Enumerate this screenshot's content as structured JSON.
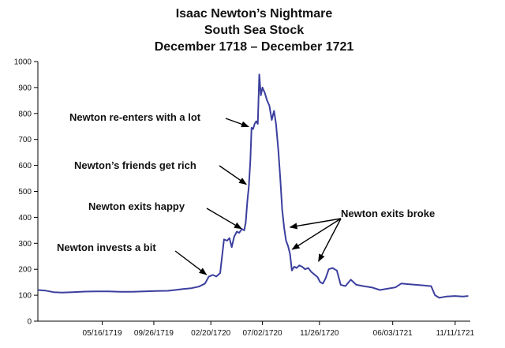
{
  "chart_data": {
    "type": "line",
    "title": [
      "Isaac Newton’s Nightmare",
      "South Sea Stock",
      "December 1718 – December 1721"
    ],
    "xlabel": "",
    "ylabel": "",
    "ylim": [
      0,
      1000
    ],
    "yticks": [
      0,
      100,
      200,
      300,
      400,
      500,
      600,
      700,
      800,
      900,
      1000
    ],
    "xrange": [
      "12/1718",
      "12/1721"
    ],
    "xticks": [
      {
        "label": "05/16/1719",
        "x": "1719-05-16"
      },
      {
        "label": "09/26/1719",
        "x": "1719-09-26"
      },
      {
        "label": "02/20/1720",
        "x": "1720-02-20"
      },
      {
        "label": "07/02/1720",
        "x": "1720-07-02"
      },
      {
        "label": "11/26/1720",
        "x": "1720-11-26"
      },
      {
        "label": "06/03/1721",
        "x": "1721-06-03"
      },
      {
        "label": "11/11/1721",
        "x": "1721-11-11"
      }
    ],
    "grid": false,
    "legend": "none",
    "line_color": "#3b3f9e",
    "series": [
      {
        "name": "",
        "points": [
          [
            "1718-12-01",
            120
          ],
          [
            "1718-12-20",
            118
          ],
          [
            "1719-01-10",
            112
          ],
          [
            "1719-02-01",
            110
          ],
          [
            "1719-03-01",
            112
          ],
          [
            "1719-04-01",
            114
          ],
          [
            "1719-05-01",
            115
          ],
          [
            "1719-06-01",
            115
          ],
          [
            "1719-07-01",
            113
          ],
          [
            "1719-08-01",
            113
          ],
          [
            "1719-09-01",
            115
          ],
          [
            "1719-10-01",
            116
          ],
          [
            "1719-11-01",
            117
          ],
          [
            "1719-11-20",
            120
          ],
          [
            "1719-12-10",
            124
          ],
          [
            "1720-01-01",
            127
          ],
          [
            "1720-01-20",
            133
          ],
          [
            "1720-02-05",
            145
          ],
          [
            "1720-02-15",
            172
          ],
          [
            "1720-02-25",
            178
          ],
          [
            "1720-03-05",
            172
          ],
          [
            "1720-03-15",
            185
          ],
          [
            "1720-03-25",
            315
          ],
          [
            "1720-04-02",
            310
          ],
          [
            "1720-04-08",
            320
          ],
          [
            "1720-04-14",
            285
          ],
          [
            "1720-04-20",
            325
          ],
          [
            "1720-04-27",
            345
          ],
          [
            "1720-05-03",
            340
          ],
          [
            "1720-05-10",
            355
          ],
          [
            "1720-05-16",
            350
          ],
          [
            "1720-05-20",
            380
          ],
          [
            "1720-05-24",
            460
          ],
          [
            "1720-05-28",
            520
          ],
          [
            "1720-06-01",
            620
          ],
          [
            "1720-06-04",
            745
          ],
          [
            "1720-06-08",
            740
          ],
          [
            "1720-06-12",
            760
          ],
          [
            "1720-06-16",
            770
          ],
          [
            "1720-06-20",
            760
          ],
          [
            "1720-06-24",
            950
          ],
          [
            "1720-06-28",
            870
          ],
          [
            "1720-07-02",
            900
          ],
          [
            "1720-07-08",
            880
          ],
          [
            "1720-07-14",
            850
          ],
          [
            "1720-07-20",
            830
          ],
          [
            "1720-07-26",
            775
          ],
          [
            "1720-08-01",
            810
          ],
          [
            "1720-08-06",
            760
          ],
          [
            "1720-08-12",
            660
          ],
          [
            "1720-08-17",
            550
          ],
          [
            "1720-08-22",
            430
          ],
          [
            "1720-08-27",
            360
          ],
          [
            "1720-09-01",
            310
          ],
          [
            "1720-09-06",
            290
          ],
          [
            "1720-09-11",
            260
          ],
          [
            "1720-09-16",
            195
          ],
          [
            "1720-09-22",
            210
          ],
          [
            "1720-09-28",
            205
          ],
          [
            "1720-10-05",
            215
          ],
          [
            "1720-10-12",
            210
          ],
          [
            "1720-10-20",
            200
          ],
          [
            "1720-10-28",
            205
          ],
          [
            "1720-11-05",
            190
          ],
          [
            "1720-11-13",
            180
          ],
          [
            "1720-11-21",
            170
          ],
          [
            "1720-11-28",
            150
          ],
          [
            "1720-12-05",
            145
          ],
          [
            "1720-12-12",
            165
          ],
          [
            "1720-12-20",
            200
          ],
          [
            "1720-12-30",
            205
          ],
          [
            "1721-01-10",
            195
          ],
          [
            "1721-01-20",
            140
          ],
          [
            "1721-02-01",
            135
          ],
          [
            "1721-02-15",
            160
          ],
          [
            "1721-03-01",
            140
          ],
          [
            "1721-03-20",
            135
          ],
          [
            "1721-04-10",
            130
          ],
          [
            "1721-05-01",
            120
          ],
          [
            "1721-05-20",
            125
          ],
          [
            "1721-06-10",
            130
          ],
          [
            "1721-06-25",
            145
          ],
          [
            "1721-07-10",
            143
          ],
          [
            "1721-08-01",
            140
          ],
          [
            "1721-08-20",
            138
          ],
          [
            "1721-09-10",
            135
          ],
          [
            "1721-09-20",
            100
          ],
          [
            "1721-10-01",
            90
          ],
          [
            "1721-10-20",
            95
          ],
          [
            "1721-11-10",
            97
          ],
          [
            "1721-12-01",
            95
          ],
          [
            "1721-12-15",
            97
          ]
        ]
      }
    ],
    "annotations": [
      {
        "text": "Newton invests a bit",
        "arrow_to": [
          [
            "1720-02-15",
            172
          ]
        ]
      },
      {
        "text": "Newton exits happy",
        "arrow_to": [
          [
            "1720-05-16",
            350
          ]
        ]
      },
      {
        "text": "Newton’s friends get rich",
        "arrow_to": [
          [
            "1720-05-28",
            520
          ]
        ]
      },
      {
        "text": "Newton re-enters with a lot",
        "arrow_to": [
          [
            "1720-06-04",
            745
          ]
        ]
      },
      {
        "text": "Newton exits broke",
        "arrow_to": [
          [
            "1720-09-03",
            360
          ],
          [
            "1720-09-10",
            270
          ],
          [
            "1720-11-20",
            220
          ]
        ]
      }
    ]
  }
}
